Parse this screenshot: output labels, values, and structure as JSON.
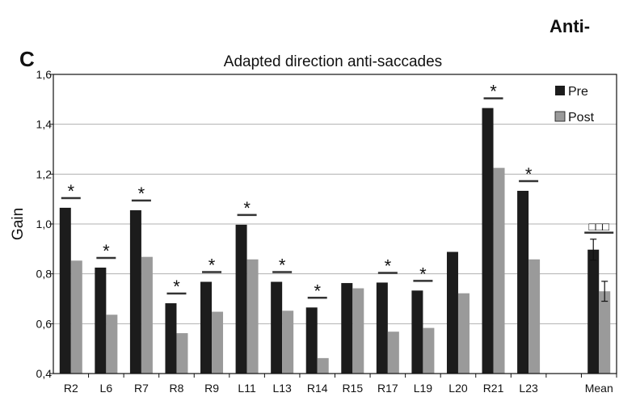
{
  "header_fragment": "Anti-",
  "panel_letter": "C",
  "chart_data": {
    "type": "bar",
    "title": "Adapted direction anti-saccades",
    "xlabel": "",
    "ylabel": "Gain",
    "ylim": [
      0.4,
      1.6
    ],
    "yticks": [
      "0,4",
      "0,6",
      "0,8",
      "1,0",
      "1,2",
      "1,4",
      "1,6"
    ],
    "ytick_values": [
      0.4,
      0.6,
      0.8,
      1.0,
      1.2,
      1.4,
      1.6
    ],
    "grid": true,
    "legend_position": "top-right",
    "categories": [
      "R2",
      "L6",
      "R7",
      "R8",
      "R9",
      "L11",
      "L13",
      "R14",
      "R15",
      "R17",
      "L19",
      "L20",
      "R21",
      "L23",
      "",
      "Mean"
    ],
    "series": [
      {
        "name": "Pre",
        "color": "#1c1c1c",
        "values": [
          1.065,
          0.825,
          1.055,
          0.682,
          0.768,
          0.997,
          0.768,
          0.665,
          0.763,
          0.765,
          0.733,
          0.888,
          1.465,
          1.133,
          null,
          0.897
        ],
        "errors": [
          null,
          null,
          null,
          null,
          null,
          null,
          null,
          null,
          null,
          null,
          null,
          null,
          null,
          null,
          null,
          0.042
        ]
      },
      {
        "name": "Post",
        "color": "#9a9a9a",
        "values": [
          0.853,
          0.636,
          0.868,
          0.562,
          0.648,
          0.858,
          0.652,
          0.462,
          0.742,
          0.568,
          0.583,
          0.722,
          1.225,
          0.858,
          null,
          0.73
        ],
        "errors": [
          null,
          null,
          null,
          null,
          null,
          null,
          null,
          null,
          null,
          null,
          null,
          null,
          null,
          null,
          null,
          0.04
        ]
      }
    ],
    "annotations": {
      "star_text": "*",
      "star_categories": [
        "R2",
        "L6",
        "R7",
        "R8",
        "R9",
        "L11",
        "L13",
        "R14",
        "R17",
        "L19",
        "R21",
        "L23"
      ],
      "mean_marker": "□□□",
      "mean_marker_category": "Mean"
    }
  }
}
